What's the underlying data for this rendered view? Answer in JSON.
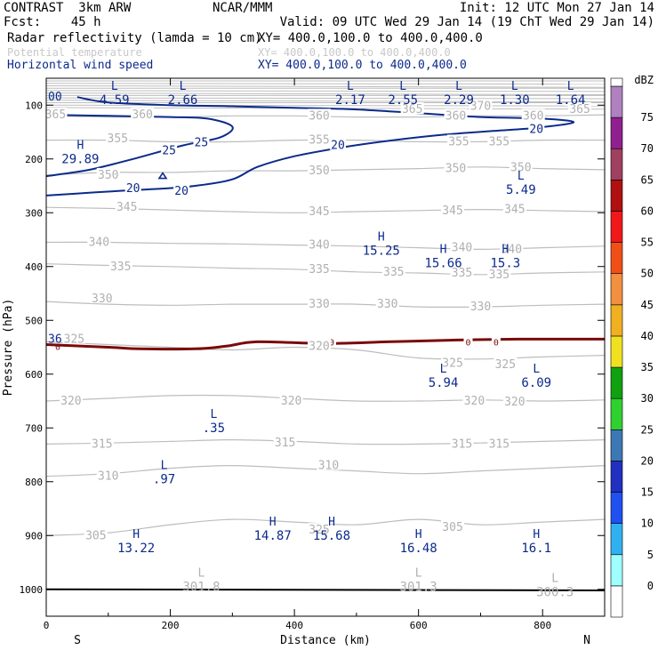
{
  "header": {
    "left1": "CONTRAST  3km ARW",
    "center1": "NCAR/MMM",
    "right1": "Init: 12 UTC Mon 27 Jan 14",
    "left2": "Fcst:    45 h",
    "right2": "Valid: 09 UTC Wed 29 Jan 14 (19 ChT Wed 29 Jan 14)",
    "field1_name": "Radar reflectivity (lamda = 10 cm)",
    "field1_xy": "XY= 400.0,100.0 to 400.0,400.0",
    "field2_name": "Potential temperature",
    "field2_xy": "XY= 400.0,100.0 to 400.0,400.0",
    "field3_name": "Horizontal wind speed",
    "field3_xy": "XY= 400.0,100.0 to 400.0,400.0"
  },
  "colors": {
    "theta": "#bdbdbd",
    "wind": "#0b2a8c",
    "zero_line": "#7a0a0a",
    "text_blue": "#0b2a8c"
  },
  "chart_data": {
    "type": "contour",
    "xlabel": "Distance (km)",
    "ylabel": "Pressure (hPa)",
    "xlim": [
      0,
      900
    ],
    "ylim": [
      1050,
      50
    ],
    "x_ticks": [
      0,
      200,
      400,
      600,
      800
    ],
    "y_ticks": [
      100,
      200,
      300,
      400,
      500,
      600,
      700,
      800,
      900,
      1000
    ],
    "endpoint_left": "S",
    "endpoint_right": "N",
    "theta_contours": [
      {
        "label": "305",
        "points": [
          [
            0,
            900
          ],
          [
            100,
            895
          ],
          [
            200,
            880
          ],
          [
            300,
            870
          ],
          [
            400,
            875
          ],
          [
            500,
            880
          ],
          [
            600,
            870
          ],
          [
            700,
            880
          ],
          [
            800,
            875
          ],
          [
            900,
            870
          ]
        ]
      },
      {
        "label": "310",
        "points": [
          [
            0,
            790
          ],
          [
            100,
            785
          ],
          [
            200,
            775
          ],
          [
            300,
            770
          ],
          [
            400,
            775
          ],
          [
            500,
            780
          ],
          [
            600,
            785
          ],
          [
            700,
            780
          ],
          [
            800,
            775
          ],
          [
            900,
            770
          ]
        ]
      },
      {
        "label": "315",
        "points": [
          [
            0,
            730
          ],
          [
            100,
            728
          ],
          [
            200,
            725
          ],
          [
            300,
            722
          ],
          [
            400,
            725
          ],
          [
            500,
            730
          ],
          [
            600,
            730
          ],
          [
            700,
            728
          ],
          [
            800,
            725
          ],
          [
            900,
            722
          ]
        ]
      },
      {
        "label": "320",
        "points": [
          [
            0,
            650
          ],
          [
            100,
            645
          ],
          [
            200,
            640
          ],
          [
            300,
            640
          ],
          [
            400,
            645
          ],
          [
            500,
            650
          ],
          [
            600,
            650
          ],
          [
            700,
            648
          ],
          [
            800,
            650
          ],
          [
            900,
            648
          ]
        ]
      },
      {
        "label": "325",
        "points": [
          [
            0,
            540
          ],
          [
            100,
            545
          ],
          [
            200,
            550
          ],
          [
            300,
            555
          ],
          [
            400,
            550
          ],
          [
            500,
            555
          ],
          [
            600,
            570
          ],
          [
            700,
            572
          ],
          [
            800,
            568
          ],
          [
            900,
            565
          ]
        ]
      },
      {
        "label": "330",
        "points": [
          [
            0,
            465
          ],
          [
            100,
            470
          ],
          [
            200,
            472
          ],
          [
            300,
            470
          ],
          [
            400,
            470
          ],
          [
            500,
            470
          ],
          [
            600,
            475
          ],
          [
            700,
            475
          ],
          [
            800,
            472
          ],
          [
            900,
            470
          ]
        ]
      },
      {
        "label": "335",
        "points": [
          [
            0,
            395
          ],
          [
            100,
            398
          ],
          [
            200,
            400
          ],
          [
            300,
            403
          ],
          [
            400,
            405
          ],
          [
            500,
            410
          ],
          [
            600,
            412
          ],
          [
            700,
            415
          ],
          [
            800,
            412
          ],
          [
            900,
            410
          ]
        ]
      },
      {
        "label": "340",
        "points": [
          [
            0,
            355
          ],
          [
            100,
            355
          ],
          [
            200,
            357
          ],
          [
            300,
            358
          ],
          [
            400,
            360
          ],
          [
            500,
            362
          ],
          [
            600,
            365
          ],
          [
            700,
            368
          ],
          [
            800,
            365
          ],
          [
            900,
            362
          ]
        ]
      },
      {
        "label": "345",
        "points": [
          [
            0,
            290
          ],
          [
            100,
            292
          ],
          [
            200,
            295
          ],
          [
            300,
            298
          ],
          [
            400,
            300
          ],
          [
            500,
            298
          ],
          [
            600,
            296
          ],
          [
            700,
            294
          ],
          [
            800,
            296
          ],
          [
            900,
            298
          ]
        ]
      },
      {
        "label": "350",
        "points": [
          [
            0,
            230
          ],
          [
            100,
            225
          ],
          [
            200,
            225
          ],
          [
            300,
            222
          ],
          [
            400,
            222
          ],
          [
            500,
            220
          ],
          [
            600,
            218
          ],
          [
            700,
            215
          ],
          [
            800,
            218
          ],
          [
            900,
            220
          ]
        ]
      },
      {
        "label": "355",
        "points": [
          [
            0,
            165
          ],
          [
            100,
            165
          ],
          [
            200,
            168
          ],
          [
            300,
            168
          ],
          [
            400,
            165
          ],
          [
            500,
            165
          ],
          [
            600,
            168
          ],
          [
            700,
            168
          ],
          [
            800,
            165
          ],
          [
            900,
            165
          ]
        ]
      },
      {
        "label": "360",
        "points": [
          [
            0,
            120
          ],
          [
            100,
            122
          ],
          [
            200,
            122
          ],
          [
            300,
            120
          ],
          [
            400,
            120
          ],
          [
            500,
            122
          ],
          [
            600,
            122
          ],
          [
            700,
            120
          ],
          [
            800,
            120
          ],
          [
            900,
            118
          ]
        ]
      }
    ],
    "theta_labels": [
      {
        "text": "305",
        "x": 80,
        "p": 900
      },
      {
        "text": "310",
        "x": 100,
        "p": 790
      },
      {
        "text": "315",
        "x": 90,
        "p": 730
      },
      {
        "text": "320",
        "x": 40,
        "p": 650
      },
      {
        "text": "325",
        "x": 45,
        "p": 535
      },
      {
        "text": "330",
        "x": 90,
        "p": 460
      },
      {
        "text": "335",
        "x": 120,
        "p": 400
      },
      {
        "text": "340",
        "x": 85,
        "p": 355
      },
      {
        "text": "345",
        "x": 130,
        "p": 290
      },
      {
        "text": "350",
        "x": 100,
        "p": 230
      },
      {
        "text": "355",
        "x": 115,
        "p": 162
      },
      {
        "text": "360",
        "x": 155,
        "p": 118
      },
      {
        "text": "365",
        "x": 15,
        "p": 118
      },
      {
        "text": "310",
        "x": 455,
        "p": 770
      },
      {
        "text": "315",
        "x": 385,
        "p": 728
      },
      {
        "text": "315",
        "x": 670,
        "p": 730
      },
      {
        "text": "315",
        "x": 730,
        "p": 730
      },
      {
        "text": "320",
        "x": 395,
        "p": 650
      },
      {
        "text": "320",
        "x": 690,
        "p": 650
      },
      {
        "text": "320",
        "x": 755,
        "p": 652
      },
      {
        "text": "325",
        "x": 655,
        "p": 580
      },
      {
        "text": "325",
        "x": 740,
        "p": 582
      },
      {
        "text": "330",
        "x": 440,
        "p": 470
      },
      {
        "text": "330",
        "x": 550,
        "p": 470
      },
      {
        "text": "330",
        "x": 700,
        "p": 475
      },
      {
        "text": "335",
        "x": 440,
        "p": 405
      },
      {
        "text": "335",
        "x": 560,
        "p": 410
      },
      {
        "text": "335",
        "x": 670,
        "p": 412
      },
      {
        "text": "335",
        "x": 730,
        "p": 415
      },
      {
        "text": "340",
        "x": 440,
        "p": 360
      },
      {
        "text": "340",
        "x": 670,
        "p": 365
      },
      {
        "text": "340",
        "x": 750,
        "p": 368
      },
      {
        "text": "345",
        "x": 440,
        "p": 298
      },
      {
        "text": "345",
        "x": 655,
        "p": 296
      },
      {
        "text": "345",
        "x": 755,
        "p": 294
      },
      {
        "text": "350",
        "x": 440,
        "p": 222
      },
      {
        "text": "350",
        "x": 660,
        "p": 218
      },
      {
        "text": "350",
        "x": 765,
        "p": 216
      },
      {
        "text": "355",
        "x": 440,
        "p": 165
      },
      {
        "text": "355",
        "x": 665,
        "p": 168
      },
      {
        "text": "355",
        "x": 730,
        "p": 168
      },
      {
        "text": "360",
        "x": 440,
        "p": 120
      },
      {
        "text": "360",
        "x": 660,
        "p": 120
      },
      {
        "text": "360",
        "x": 785,
        "p": 120
      },
      {
        "text": "365",
        "x": 590,
        "p": 108
      },
      {
        "text": "370",
        "x": 700,
        "p": 102
      },
      {
        "text": "365",
        "x": 860,
        "p": 108
      },
      {
        "text": "320",
        "x": 440,
        "p": 548
      },
      {
        "text": "325",
        "x": 440,
        "p": 890
      },
      {
        "text": "305",
        "x": 655,
        "p": 885
      }
    ],
    "wind_contours": [
      {
        "label": "25",
        "points": [
          [
            0,
            118
          ],
          [
            100,
            120
          ],
          [
            200,
            122
          ],
          [
            260,
            125
          ],
          [
            300,
            140
          ],
          [
            280,
            160
          ],
          [
            220,
            175
          ],
          [
            140,
            200
          ],
          [
            70,
            220
          ],
          [
            0,
            232
          ]
        ]
      },
      {
        "label": "20",
        "points": [
          [
            0,
            268
          ],
          [
            80,
            262
          ],
          [
            140,
            258
          ],
          [
            190,
            255
          ],
          [
            240,
            250
          ],
          [
            300,
            238
          ],
          [
            340,
            215
          ],
          [
            400,
            195
          ],
          [
            480,
            178
          ],
          [
            560,
            165
          ],
          [
            640,
            155
          ],
          [
            720,
            148
          ],
          [
            790,
            142
          ],
          [
            850,
            132
          ],
          [
            800,
            125
          ],
          [
            700,
            122
          ],
          [
            600,
            115
          ],
          [
            500,
            108
          ],
          [
            400,
            105
          ],
          [
            300,
            102
          ],
          [
            200,
            100
          ],
          [
            100,
            95
          ],
          [
            50,
            85
          ]
        ]
      }
    ],
    "wind_labels": [
      {
        "text": "25",
        "x": 250,
        "p": 170
      },
      {
        "text": "25",
        "x": 198,
        "p": 185
      },
      {
        "text": "20",
        "x": 140,
        "p": 255
      },
      {
        "text": "20",
        "x": 218,
        "p": 260
      },
      {
        "text": "20",
        "x": 470,
        "p": 175
      },
      {
        "text": "20",
        "x": 790,
        "p": 145
      }
    ],
    "zero_reflectivity_line": {
      "label": "0",
      "points": [
        [
          0,
          545
        ],
        [
          100,
          550
        ],
        [
          150,
          553
        ],
        [
          240,
          553
        ],
        [
          290,
          548
        ],
        [
          340,
          540
        ],
        [
          450,
          543
        ],
        [
          550,
          540
        ],
        [
          650,
          537
        ],
        [
          760,
          535
        ],
        [
          820,
          535
        ],
        [
          900,
          535
        ]
      ]
    },
    "extrema": [
      {
        "type": "L",
        "value": "4.59",
        "x": 110,
        "p": 75
      },
      {
        "type": "L",
        "value": "2.66",
        "x": 220,
        "p": 75
      },
      {
        "type": "L",
        "value": "2.17",
        "x": 490,
        "p": 75
      },
      {
        "type": "L",
        "value": "2.55",
        "x": 575,
        "p": 75
      },
      {
        "type": "L",
        "value": "2.29",
        "x": 665,
        "p": 75
      },
      {
        "type": "L",
        "value": "1.30",
        "x": 755,
        "p": 75
      },
      {
        "type": "L",
        "value": "1.64",
        "x": 845,
        "p": 75
      },
      {
        "type": "H",
        "value": "29.89",
        "x": 55,
        "p": 185
      },
      {
        "type": "L",
        "value": "5.49",
        "x": 765,
        "p": 242
      },
      {
        "type": "H",
        "value": "15.25",
        "x": 540,
        "p": 355
      },
      {
        "type": "H",
        "value": "15.66",
        "x": 640,
        "p": 378
      },
      {
        "type": "H",
        "value": "15.3",
        "x": 740,
        "p": 378
      },
      {
        "type": "L",
        "value": "5.94",
        "x": 640,
        "p": 600
      },
      {
        "type": "L",
        "value": "6.09",
        "x": 790,
        "p": 600
      },
      {
        "type": "L",
        "value": ".35",
        "x": 270,
        "p": 685
      },
      {
        "type": "L",
        "value": ".97",
        "x": 190,
        "p": 780
      },
      {
        "type": "H",
        "value": "14.87",
        "x": 365,
        "p": 885
      },
      {
        "type": "H",
        "value": "15.68",
        "x": 460,
        "p": 885
      },
      {
        "type": "H",
        "value": "13.22",
        "x": 145,
        "p": 908
      },
      {
        "type": "H",
        "value": "16.48",
        "x": 600,
        "p": 908
      },
      {
        "type": "H",
        "value": "16.1",
        "x": 790,
        "p": 908
      }
    ],
    "theta_extrema": [
      {
        "type": "L",
        "value": "301.8",
        "x": 250,
        "p": 980
      },
      {
        "type": "L",
        "value": "301.3",
        "x": 600,
        "p": 980
      },
      {
        "type": "L",
        "value": "300.3",
        "x": 820,
        "p": 990
      }
    ],
    "edge_labels": [
      {
        "text": "00",
        "x": 0,
        "p": 85
      },
      {
        "text": "36",
        "x": 0,
        "p": 535
      },
      {
        "text": "0",
        "x": 8,
        "p": 548
      }
    ],
    "colorbar": {
      "unit": "dBZ",
      "levels": [
        "0",
        "5",
        "10",
        "15",
        "20",
        "25",
        "30",
        "35",
        "40",
        "45",
        "50",
        "55",
        "60",
        "65",
        "70",
        "75"
      ],
      "colors": [
        "#ffffff",
        "#a0ffff",
        "#30b0f0",
        "#2050f0",
        "#2030c0",
        "#3c78b4",
        "#30d030",
        "#10a010",
        "#f0e020",
        "#f0b020",
        "#f09040",
        "#f05018",
        "#f01818",
        "#b01010",
        "#a04060",
        "#902090",
        "#b080c0"
      ]
    }
  }
}
